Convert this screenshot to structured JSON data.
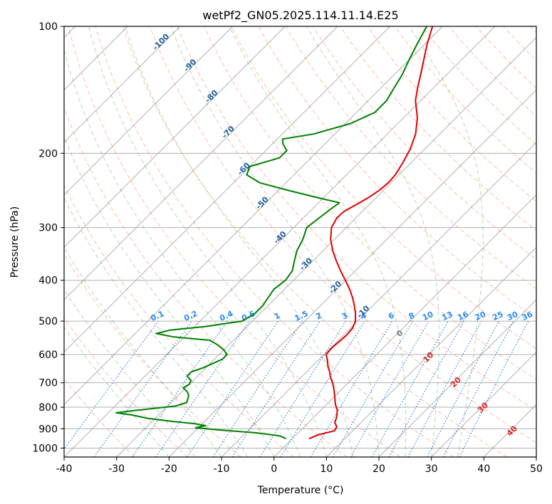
{
  "chart_data": {
    "type": "line",
    "subtype": "skew-t log-p diagram",
    "title": "wetPf2_GN05.2025.114.11.14.E25",
    "xlabel": "Temperature (°C)",
    "ylabel": "Pressure (hPa)",
    "xlim": [
      -40,
      50
    ],
    "ylim": [
      1050,
      100
    ],
    "y_scale": "log",
    "grid": true,
    "x_ticks": [
      "-40",
      "-30",
      "-20",
      "-10",
      "0",
      "10",
      "20",
      "30",
      "40",
      "50"
    ],
    "y_ticks": [
      "100",
      "200",
      "300",
      "400",
      "500",
      "600",
      "700",
      "800",
      "900",
      "1000"
    ],
    "y_tick_values": [
      100,
      200,
      300,
      400,
      500,
      600,
      700,
      800,
      900,
      1000
    ],
    "x_tick_values": [
      -40,
      -30,
      -20,
      -10,
      0,
      10,
      20,
      30,
      40,
      50
    ],
    "series": [
      {
        "color": "#e00000",
        "pressure": [
          950,
          930,
          910,
          890,
          870,
          850,
          830,
          810,
          790,
          770,
          750,
          720,
          700,
          680,
          660,
          640,
          620,
          600,
          580,
          560,
          540,
          520,
          500,
          480,
          460,
          440,
          420,
          400,
          380,
          360,
          340,
          320,
          300,
          285,
          275,
          265,
          255,
          245,
          235,
          225,
          210,
          195,
          180,
          165,
          150,
          140,
          130,
          120,
          110,
          100
        ],
        "temperature": [
          3.2,
          4.2,
          6.5,
          6.2,
          5.0,
          4.5,
          3.8,
          3.0,
          1.8,
          0.8,
          -0.2,
          -1.8,
          -3.0,
          -4.4,
          -5.6,
          -7.0,
          -8.2,
          -9.6,
          -9.8,
          -9.6,
          -9.4,
          -9.6,
          -10.4,
          -11.8,
          -13.5,
          -15.4,
          -17.6,
          -20.1,
          -22.8,
          -25.5,
          -28.2,
          -30.7,
          -32.8,
          -33.6,
          -33.5,
          -32.5,
          -31.5,
          -30.8,
          -30.5,
          -30.7,
          -31.6,
          -32.8,
          -34.6,
          -37.3,
          -41.0,
          -43.0,
          -45.0,
          -47.2,
          -49.6,
          -51.9
        ]
      },
      {
        "color": "#008000",
        "pressure": [
          950,
          935,
          920,
          905,
          895,
          885,
          875,
          865,
          850,
          835,
          825,
          815,
          805,
          795,
          780,
          765,
          750,
          735,
          720,
          705,
          690,
          675,
          660,
          645,
          630,
          615,
          600,
          585,
          570,
          555,
          545,
          535,
          525,
          515,
          500,
          480,
          460,
          440,
          420,
          400,
          380,
          360,
          340,
          320,
          300,
          285,
          272,
          262,
          255,
          245,
          235,
          225,
          215,
          205,
          197,
          190,
          185,
          180,
          170,
          160,
          150,
          140,
          130,
          120,
          110,
          100
        ],
        "temperature": [
          -1.2,
          -3.0,
          -8.0,
          -16.0,
          -20.5,
          -19.0,
          -21.5,
          -26.0,
          -31.5,
          -35.0,
          -38.5,
          -35.5,
          -32.0,
          -28.5,
          -27.0,
          -27.5,
          -28.0,
          -29.0,
          -30.5,
          -30.0,
          -30.5,
          -32.0,
          -32.0,
          -30.5,
          -29.5,
          -28.5,
          -28.5,
          -30.0,
          -32.0,
          -34.5,
          -42.0,
          -46.0,
          -44.0,
          -38.0,
          -32.0,
          -31.0,
          -31.0,
          -31.5,
          -32.0,
          -31.5,
          -32.0,
          -33.5,
          -35.0,
          -36.0,
          -37.5,
          -37.0,
          -36.5,
          -36.0,
          -41.0,
          -48.0,
          -55.0,
          -59.0,
          -60.0,
          -56.0,
          -56.0,
          -58.0,
          -59.0,
          -54.0,
          -49.0,
          -46.5,
          -46.5,
          -47.5,
          -48.5,
          -50.0,
          -51.5,
          -53.0
        ]
      }
    ],
    "reference_lines": {
      "isotherms_every_C": 10,
      "dry_adiabats_theta_K": [
        -30,
        -20,
        -10,
        0,
        10,
        20,
        30,
        40,
        50,
        60,
        70,
        80,
        90,
        100,
        110,
        120,
        130,
        140,
        150,
        160,
        170,
        180,
        190,
        200
      ],
      "moist_adiabats_color": "#2e8b2e",
      "dry_adiabats_color": "#ff6a3d"
    },
    "annotations": {
      "moist_labels": [
        "-100",
        "-90",
        "-80",
        "-70",
        "-60",
        "-50",
        "-40",
        "-30",
        "-20",
        "-10"
      ],
      "mixing_ratio_labels": [
        "0.1",
        "0.2",
        "0.4",
        "0.6",
        "1",
        "1.5",
        "2",
        "3",
        "4",
        "6",
        "8",
        "10",
        "13",
        "16",
        "20",
        "25",
        "30",
        "36"
      ],
      "mixing_ratio_values": [
        0.1,
        0.2,
        0.4,
        0.6,
        1,
        1.5,
        2,
        3,
        4,
        6,
        8,
        10,
        13,
        16,
        20,
        25,
        30,
        36
      ],
      "isotherm_labels": [
        "0",
        "10",
        "20",
        "30",
        "40"
      ]
    }
  }
}
